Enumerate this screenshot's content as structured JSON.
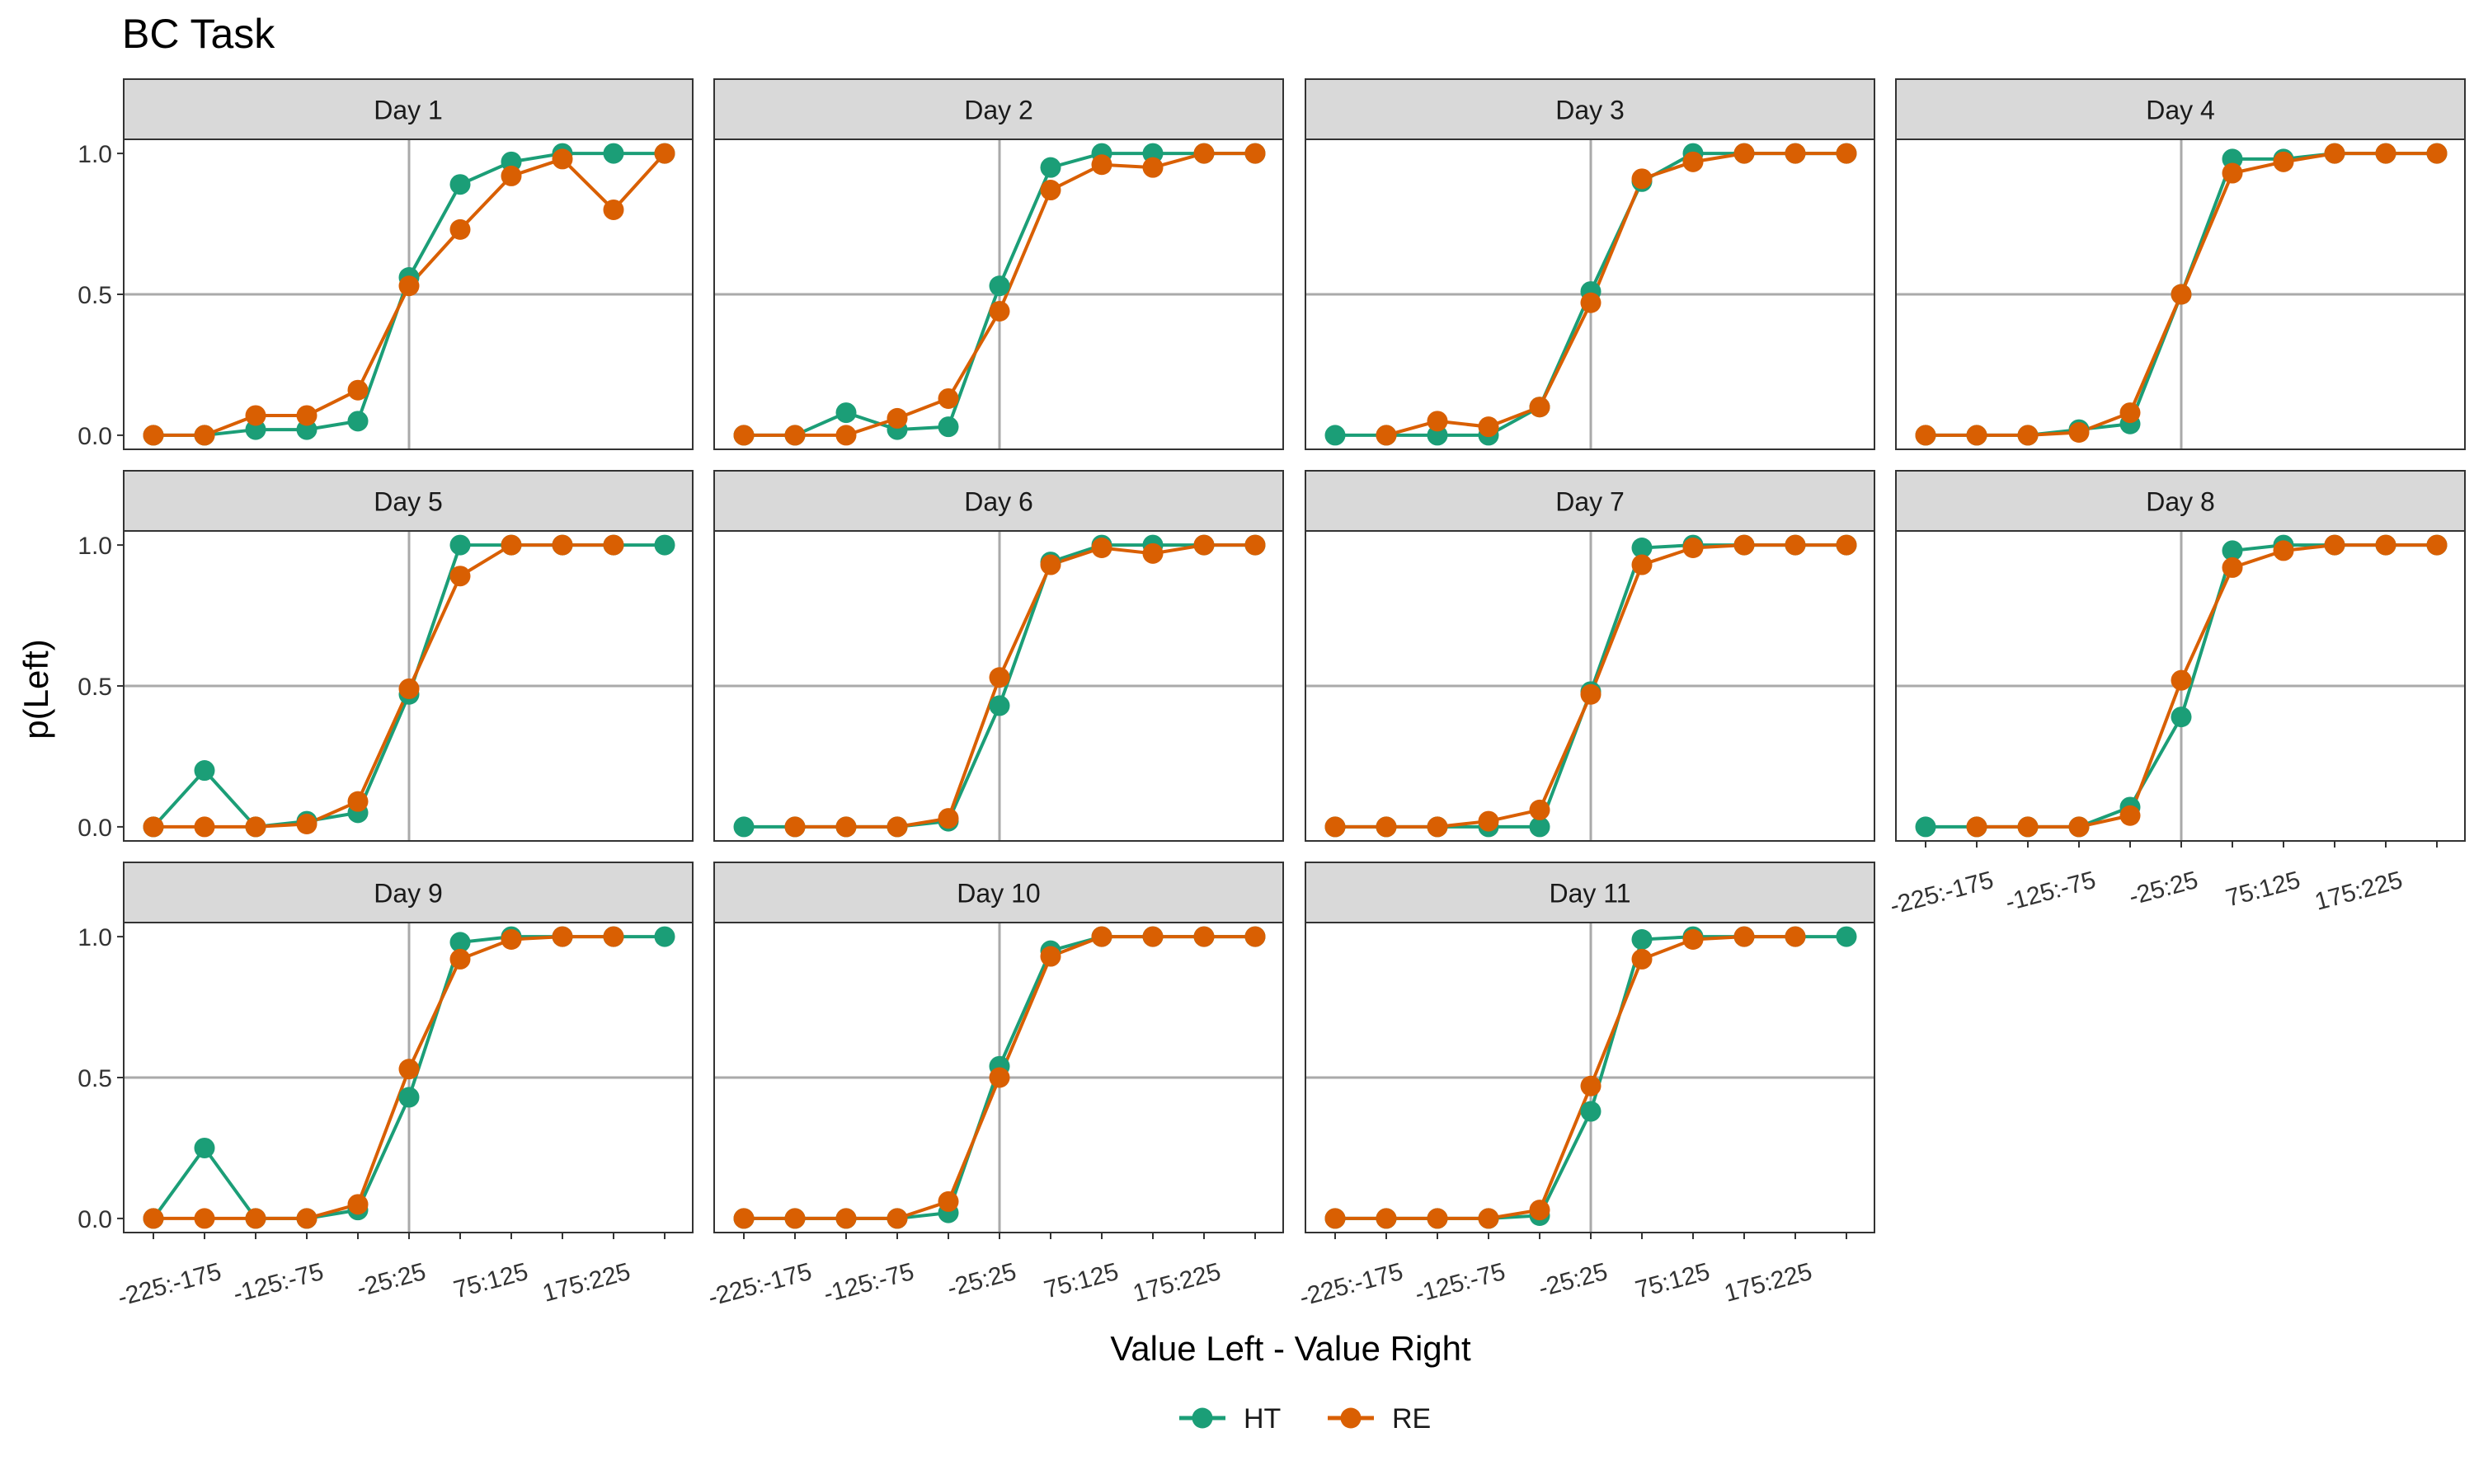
{
  "chart_data": {
    "type": "line",
    "title": "BC Task",
    "xlabel": "Value Left - Value Right",
    "ylabel": "p(Left)",
    "x_tick_labels": [
      "-225:-175",
      "-125:-75",
      "-25:25",
      "75:125",
      "175:225"
    ],
    "y_ticks": [
      0.0,
      0.5,
      1.0
    ],
    "y_tick_labels": [
      "0.0",
      "0.5",
      "1.0"
    ],
    "ylim": [
      -0.05,
      1.05
    ],
    "reference_lines": {
      "y": 0.5,
      "x_index": 5
    },
    "grid": true,
    "legend": {
      "position": "bottom",
      "items": [
        {
          "name": "HT",
          "color": "#1B9E77"
        },
        {
          "name": "RE",
          "color": "#D95F02"
        }
      ]
    },
    "panels": [
      {
        "label": "Day 1",
        "series": [
          {
            "name": "HT",
            "values": [
              0,
              0,
              0.02,
              0.02,
              0.05,
              0.56,
              0.89,
              0.97,
              1,
              1,
              1
            ]
          },
          {
            "name": "RE",
            "values": [
              0,
              0,
              0.07,
              0.07,
              0.16,
              0.53,
              0.73,
              0.92,
              0.98,
              0.8,
              1
            ]
          }
        ]
      },
      {
        "label": "Day 2",
        "series": [
          {
            "name": "HT",
            "values": [
              0,
              0,
              0.08,
              0.02,
              0.03,
              0.53,
              0.95,
              1,
              1,
              1,
              1
            ]
          },
          {
            "name": "RE",
            "values": [
              0,
              0,
              0,
              0.06,
              0.13,
              0.44,
              0.87,
              0.96,
              0.95,
              1,
              1
            ]
          }
        ]
      },
      {
        "label": "Day 3",
        "series": [
          {
            "name": "HT",
            "values": [
              0,
              0,
              0,
              0,
              0.1,
              0.51,
              0.9,
              1,
              1,
              1,
              1
            ]
          },
          {
            "name": "RE",
            "values": [
              null,
              0,
              0.05,
              0.03,
              0.1,
              0.47,
              0.91,
              0.97,
              1,
              1,
              1
            ]
          }
        ]
      },
      {
        "label": "Day 4",
        "series": [
          {
            "name": "HT",
            "values": [
              0,
              0,
              0,
              0.02,
              0.04,
              0.5,
              0.98,
              0.98,
              1,
              1,
              1
            ]
          },
          {
            "name": "RE",
            "values": [
              0,
              0,
              0,
              0.01,
              0.08,
              0.5,
              0.93,
              0.97,
              1,
              1,
              1
            ]
          }
        ]
      },
      {
        "label": "Day 5",
        "series": [
          {
            "name": "HT",
            "values": [
              0,
              0.2,
              0,
              0.02,
              0.05,
              0.47,
              1,
              1,
              1,
              1,
              1
            ]
          },
          {
            "name": "RE",
            "values": [
              0,
              0,
              0,
              0.01,
              0.09,
              0.49,
              0.89,
              1,
              1,
              1,
              null
            ]
          }
        ]
      },
      {
        "label": "Day 6",
        "series": [
          {
            "name": "HT",
            "values": [
              0,
              0,
              0,
              0,
              0.02,
              0.43,
              0.94,
              1,
              1,
              1,
              1
            ]
          },
          {
            "name": "RE",
            "values": [
              null,
              0,
              0,
              0,
              0.03,
              0.53,
              0.93,
              0.99,
              0.97,
              1,
              1
            ]
          }
        ]
      },
      {
        "label": "Day 7",
        "series": [
          {
            "name": "HT",
            "values": [
              0,
              0,
              0,
              0,
              0,
              0.48,
              0.99,
              1,
              1,
              1,
              1
            ]
          },
          {
            "name": "RE",
            "values": [
              0,
              0,
              0,
              0.02,
              0.06,
              0.47,
              0.93,
              0.99,
              1,
              1,
              1
            ]
          }
        ]
      },
      {
        "label": "Day 8",
        "series": [
          {
            "name": "HT",
            "values": [
              0,
              0,
              0,
              0,
              0.07,
              0.39,
              0.98,
              1,
              1,
              1,
              1
            ]
          },
          {
            "name": "RE",
            "values": [
              null,
              0,
              0,
              0,
              0.04,
              0.52,
              0.92,
              0.98,
              1,
              1,
              1
            ]
          }
        ]
      },
      {
        "label": "Day 9",
        "series": [
          {
            "name": "HT",
            "values": [
              0,
              0.25,
              0,
              0,
              0.03,
              0.43,
              0.98,
              1,
              1,
              1,
              1
            ]
          },
          {
            "name": "RE",
            "values": [
              0,
              0,
              0,
              0,
              0.05,
              0.53,
              0.92,
              0.99,
              1,
              1,
              null
            ]
          }
        ]
      },
      {
        "label": "Day 10",
        "series": [
          {
            "name": "HT",
            "values": [
              0,
              0,
              0,
              0,
              0.02,
              0.54,
              0.95,
              1,
              1,
              1,
              1
            ]
          },
          {
            "name": "RE",
            "values": [
              0,
              0,
              0,
              0,
              0.06,
              0.5,
              0.93,
              1,
              1,
              1,
              1
            ]
          }
        ]
      },
      {
        "label": "Day 11",
        "series": [
          {
            "name": "HT",
            "values": [
              0,
              0,
              0,
              0,
              0.01,
              0.38,
              0.99,
              1,
              1,
              1,
              1
            ]
          },
          {
            "name": "RE",
            "values": [
              0,
              0,
              0,
              0,
              0.03,
              0.47,
              0.92,
              0.99,
              1,
              1,
              null
            ]
          }
        ]
      }
    ]
  }
}
